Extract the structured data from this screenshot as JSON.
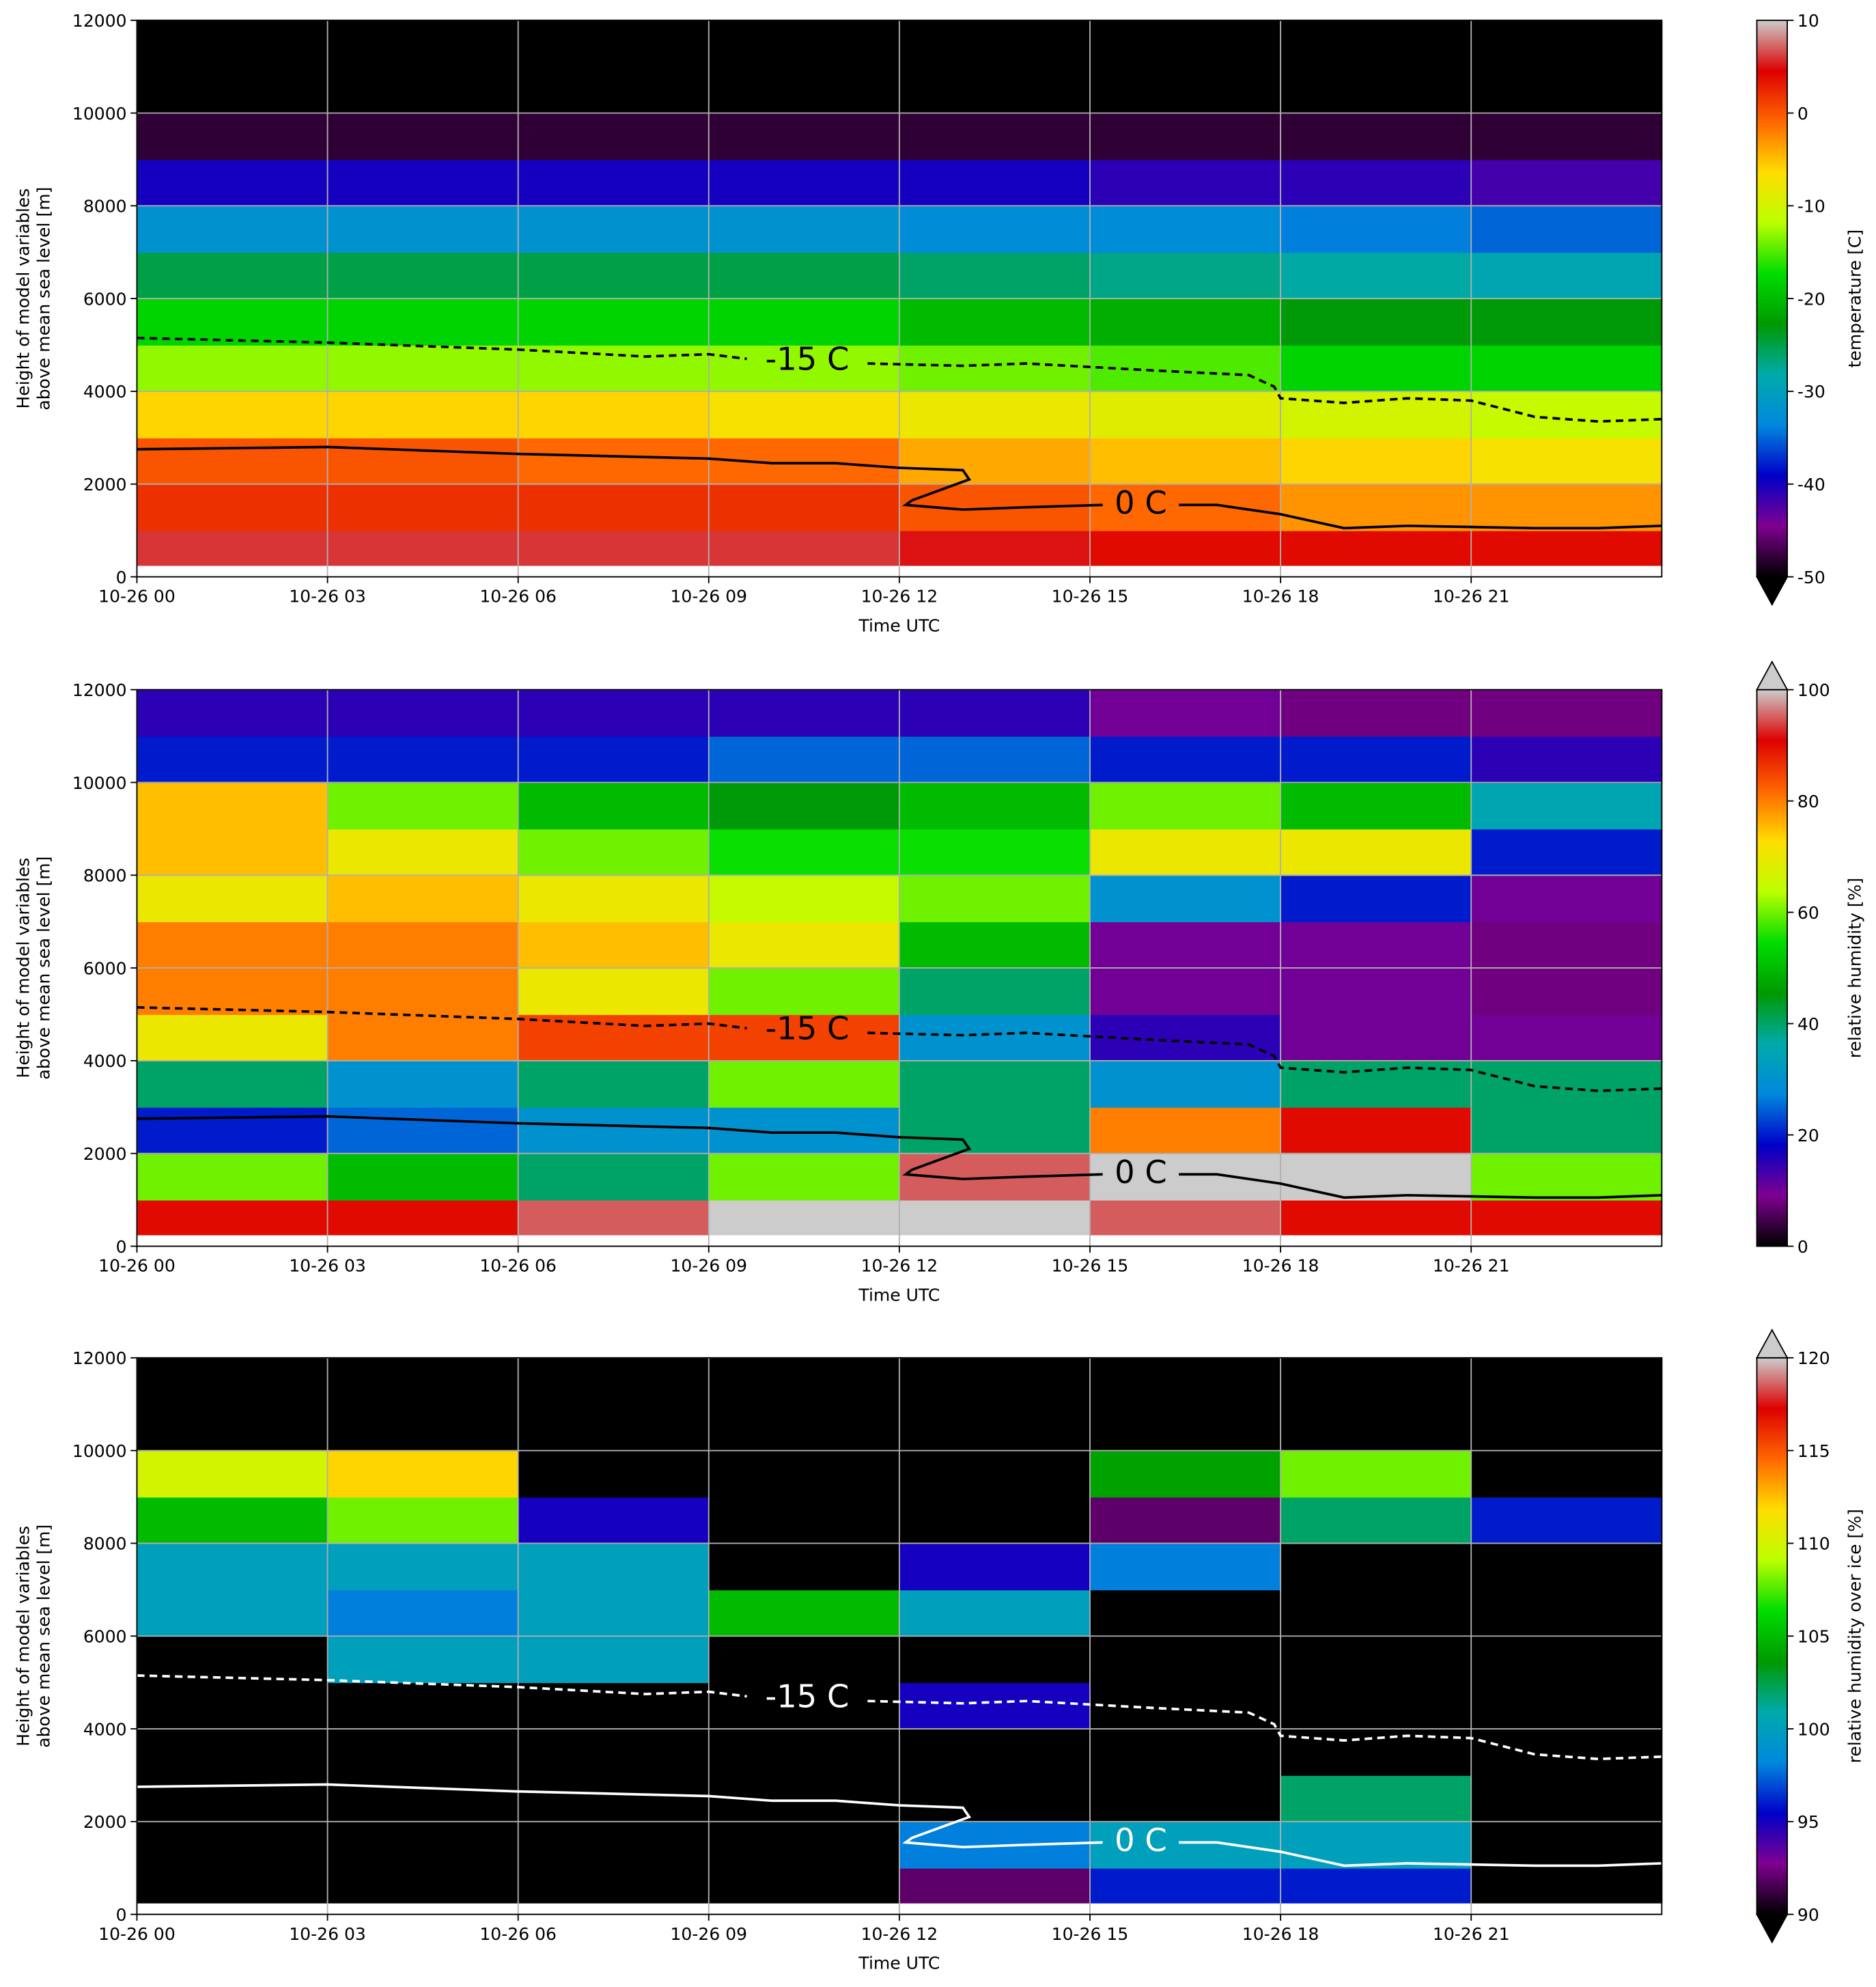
{
  "chart_data": [
    {
      "type": "heatmap",
      "xbins": [
        0,
        3,
        6,
        9,
        12,
        15,
        18,
        21,
        24
      ],
      "ybins": [
        250,
        1000,
        2000,
        3000,
        4000,
        5000,
        6000,
        7000,
        8000,
        9000,
        10000,
        11000,
        12000
      ],
      "values": [
        [
          6,
          6,
          6,
          6,
          5,
          4,
          4,
          4
        ],
        [
          2,
          2,
          2,
          2,
          0,
          -1,
          -3,
          -3
        ],
        [
          0,
          0,
          -1,
          -1,
          -4,
          -5,
          -6,
          -7
        ],
        [
          -6,
          -6,
          -6,
          -7,
          -8,
          -9,
          -10,
          -11
        ],
        [
          -13,
          -13,
          -13,
          -13,
          -14,
          -15,
          -18,
          -18
        ],
        [
          -18,
          -18,
          -18,
          -18,
          -20,
          -21,
          -23,
          -23
        ],
        [
          -25,
          -25,
          -25,
          -25,
          -26,
          -27,
          -28,
          -29
        ],
        [
          -32,
          -32,
          -32,
          -32,
          -33,
          -33,
          -34,
          -35
        ],
        [
          -40,
          -40,
          -40,
          -40,
          -40,
          -41,
          -41,
          -42
        ],
        [
          -48,
          -48,
          -48,
          -48,
          -48,
          -48,
          -48,
          -48
        ],
        [
          -52,
          -52,
          -52,
          -52,
          -52,
          -52,
          -52,
          -52
        ],
        [
          -54,
          -54,
          -54,
          -54,
          -54,
          -54,
          -54,
          -54
        ]
      ],
      "colormap": [
        "#000000",
        "#7f0090",
        "#0000c8",
        "#0088dd",
        "#00aaaa",
        "#009900",
        "#00dd00",
        "#bbff00",
        "#ffdd00",
        "#ff6600",
        "#dd0000",
        "#cccccc"
      ],
      "clim": [
        -50,
        10
      ],
      "under_color": "#000000",
      "colorbar_label": "temperature [C]",
      "colorbar_ticks": [
        -50,
        -40,
        -30,
        -20,
        -10,
        0,
        10
      ],
      "xlim": [
        0,
        24
      ],
      "ylim": [
        0,
        12000
      ],
      "xticks": [
        {
          "value": 0,
          "label": "10-26 00"
        },
        {
          "value": 3,
          "label": "10-26 03"
        },
        {
          "value": 6,
          "label": "10-26 06"
        },
        {
          "value": 9,
          "label": "10-26 09"
        },
        {
          "value": 12,
          "label": "10-26 12"
        },
        {
          "value": 15,
          "label": "10-26 15"
        },
        {
          "value": 18,
          "label": "10-26 18"
        },
        {
          "value": 21,
          "label": "10-26 21"
        }
      ],
      "yticks": [
        0,
        2000,
        4000,
        6000,
        8000,
        10000,
        12000
      ],
      "xlabel": "Time UTC",
      "ylabel": [
        "Height of model variables",
        "above mean sea level [m]"
      ],
      "grid": true,
      "contours": [
        {
          "label": "-15 C",
          "color": "#000000",
          "dashed": true,
          "x": [
            0,
            3,
            6,
            8,
            9,
            9.6,
            null,
            11.5,
            13,
            14,
            16,
            17.5,
            17.9,
            18,
            19,
            20,
            21,
            22,
            23,
            24
          ],
          "y": [
            5150,
            5050,
            4900,
            4750,
            4800,
            4700,
            null,
            4600,
            4550,
            4600,
            4450,
            4350,
            4100,
            3850,
            3750,
            3850,
            3800,
            3450,
            3350,
            3400
          ]
        },
        {
          "label": "0 C",
          "color": "#000000",
          "dashed": false,
          "x": [
            0,
            3,
            6,
            9,
            10,
            11,
            12,
            13,
            13.1,
            12.7,
            12.2,
            12.1,
            13,
            14,
            15.2,
            null,
            16.4,
            17,
            18,
            19,
            20,
            22,
            23,
            24
          ],
          "y": [
            2750,
            2800,
            2650,
            2550,
            2450,
            2450,
            2350,
            2300,
            2100,
            1900,
            1650,
            1550,
            1450,
            1500,
            1550,
            null,
            1550,
            1550,
            1350,
            1050,
            1100,
            1050,
            1050,
            1100
          ]
        }
      ]
    },
    {
      "type": "heatmap",
      "xbins": [
        0,
        3,
        6,
        9,
        12,
        15,
        18,
        21,
        24
      ],
      "ybins": [
        250,
        1000,
        2000,
        3000,
        4000,
        5000,
        6000,
        7000,
        8000,
        9000,
        10000,
        11000,
        12000
      ],
      "values": [
        [
          90,
          90,
          95,
          100,
          100,
          95,
          90,
          90
        ],
        [
          60,
          50,
          40,
          60,
          95,
          100,
          100,
          60
        ],
        [
          20,
          25,
          30,
          30,
          40,
          80,
          90,
          40
        ],
        [
          40,
          30,
          40,
          60,
          40,
          30,
          40,
          40
        ],
        [
          70,
          80,
          85,
          85,
          30,
          15,
          10,
          10
        ],
        [
          80,
          80,
          70,
          60,
          40,
          10,
          10,
          8
        ],
        [
          80,
          80,
          75,
          70,
          50,
          10,
          10,
          8
        ],
        [
          70,
          75,
          70,
          65,
          60,
          30,
          20,
          10
        ],
        [
          75,
          70,
          60,
          55,
          55,
          70,
          70,
          20
        ],
        [
          75,
          60,
          50,
          45,
          50,
          60,
          50,
          35
        ],
        [
          20,
          20,
          20,
          25,
          25,
          20,
          20,
          15
        ],
        [
          15,
          15,
          15,
          15,
          15,
          10,
          8,
          8
        ]
      ],
      "colormap": [
        "#000000",
        "#7f0090",
        "#0000c8",
        "#0088dd",
        "#00aaaa",
        "#009900",
        "#00dd00",
        "#bbff00",
        "#ffdd00",
        "#ff6600",
        "#dd0000",
        "#cccccc"
      ],
      "clim": [
        0,
        100
      ],
      "over_color": "#cccccc",
      "colorbar_label": "relative humidity [%]",
      "colorbar_ticks": [
        0,
        20,
        40,
        60,
        80,
        100
      ],
      "xlim": [
        0,
        24
      ],
      "ylim": [
        0,
        12000
      ],
      "xticks": [
        {
          "value": 0,
          "label": "10-26 00"
        },
        {
          "value": 3,
          "label": "10-26 03"
        },
        {
          "value": 6,
          "label": "10-26 06"
        },
        {
          "value": 9,
          "label": "10-26 09"
        },
        {
          "value": 12,
          "label": "10-26 12"
        },
        {
          "value": 15,
          "label": "10-26 15"
        },
        {
          "value": 18,
          "label": "10-26 18"
        },
        {
          "value": 21,
          "label": "10-26 21"
        }
      ],
      "yticks": [
        0,
        2000,
        4000,
        6000,
        8000,
        10000,
        12000
      ],
      "xlabel": "Time UTC",
      "ylabel": [
        "Height of model variables",
        "above mean sea level [m]"
      ],
      "grid": true,
      "contours": [
        {
          "label": "-15 C",
          "color": "#000000",
          "dashed": true,
          "x": [
            0,
            3,
            6,
            8,
            9,
            9.6,
            null,
            11.5,
            13,
            14,
            16,
            17.5,
            17.9,
            18,
            19,
            20,
            21,
            22,
            23,
            24
          ],
          "y": [
            5150,
            5050,
            4900,
            4750,
            4800,
            4700,
            null,
            4600,
            4550,
            4600,
            4450,
            4350,
            4100,
            3850,
            3750,
            3850,
            3800,
            3450,
            3350,
            3400
          ]
        },
        {
          "label": "0 C",
          "color": "#000000",
          "dashed": false,
          "x": [
            0,
            3,
            6,
            9,
            10,
            11,
            12,
            13,
            13.1,
            12.7,
            12.2,
            12.1,
            13,
            14,
            15.2,
            null,
            16.4,
            17,
            18,
            19,
            20,
            22,
            23,
            24
          ],
          "y": [
            2750,
            2800,
            2650,
            2550,
            2450,
            2450,
            2350,
            2300,
            2100,
            1900,
            1650,
            1550,
            1450,
            1500,
            1550,
            null,
            1550,
            1550,
            1350,
            1050,
            1100,
            1050,
            1050,
            1100
          ]
        }
      ]
    },
    {
      "type": "heatmap",
      "xbins": [
        0,
        3,
        6,
        9,
        12,
        15,
        18,
        21,
        24
      ],
      "ybins": [
        250,
        1000,
        2000,
        3000,
        4000,
        5000,
        6000,
        7000,
        8000,
        9000,
        10000,
        11000,
        12000
      ],
      "values": [
        [
          85,
          85,
          85,
          88,
          92,
          96,
          96,
          85
        ],
        [
          85,
          85,
          85,
          85,
          98,
          100,
          100,
          85
        ],
        [
          85,
          85,
          85,
          85,
          85,
          88,
          102,
          85
        ],
        [
          85,
          85,
          85,
          85,
          85,
          85,
          85,
          85
        ],
        [
          85,
          88,
          85,
          85,
          95,
          85,
          85,
          85
        ],
        [
          85,
          100,
          100,
          85,
          85,
          85,
          85,
          85
        ],
        [
          100,
          98,
          100,
          105,
          100,
          85,
          85,
          85
        ],
        [
          100,
          100,
          100,
          85,
          95,
          98,
          85,
          85
        ],
        [
          105,
          108,
          95,
          85,
          85,
          92,
          102,
          96
        ],
        [
          110,
          112,
          90,
          85,
          85,
          104,
          108,
          85
        ],
        [
          85,
          85,
          85,
          85,
          85,
          85,
          85,
          85
        ],
        [
          85,
          85,
          85,
          85,
          85,
          85,
          85,
          85
        ]
      ],
      "colormap": [
        "#000000",
        "#7f0090",
        "#0000c8",
        "#0088dd",
        "#00aaaa",
        "#009900",
        "#00dd00",
        "#bbff00",
        "#ffdd00",
        "#ff6600",
        "#dd0000",
        "#cccccc"
      ],
      "clim": [
        90,
        120
      ],
      "under_color": "#000000",
      "over_color": "#cccccc",
      "colorbar_label": "relative humidity over ice [%]",
      "colorbar_ticks": [
        90,
        95,
        100,
        105,
        110,
        115,
        120
      ],
      "xlim": [
        0,
        24
      ],
      "ylim": [
        0,
        12000
      ],
      "xticks": [
        {
          "value": 0,
          "label": "10-26 00"
        },
        {
          "value": 3,
          "label": "10-26 03"
        },
        {
          "value": 6,
          "label": "10-26 06"
        },
        {
          "value": 9,
          "label": "10-26 09"
        },
        {
          "value": 12,
          "label": "10-26 12"
        },
        {
          "value": 15,
          "label": "10-26 15"
        },
        {
          "value": 18,
          "label": "10-26 18"
        },
        {
          "value": 21,
          "label": "10-26 21"
        }
      ],
      "yticks": [
        0,
        2000,
        4000,
        6000,
        8000,
        10000,
        12000
      ],
      "xlabel": "Time UTC",
      "ylabel": [
        "Height of model variables",
        "above mean sea level [m]"
      ],
      "grid": true,
      "contours": [
        {
          "label": "-15 C",
          "color": "#ffffff",
          "dashed": true,
          "x": [
            0,
            3,
            6,
            8,
            9,
            9.6,
            null,
            11.5,
            13,
            14,
            16,
            17.5,
            17.9,
            18,
            19,
            20,
            21,
            22,
            23,
            24
          ],
          "y": [
            5150,
            5050,
            4900,
            4750,
            4800,
            4700,
            null,
            4600,
            4550,
            4600,
            4450,
            4350,
            4100,
            3850,
            3750,
            3850,
            3800,
            3450,
            3350,
            3400
          ]
        },
        {
          "label": "0 C",
          "color": "#ffffff",
          "dashed": false,
          "x": [
            0,
            3,
            6,
            9,
            10,
            11,
            12,
            13,
            13.1,
            12.7,
            12.2,
            12.1,
            13,
            14,
            15.2,
            null,
            16.4,
            17,
            18,
            19,
            20,
            22,
            23,
            24
          ],
          "y": [
            2750,
            2800,
            2650,
            2550,
            2450,
            2450,
            2350,
            2300,
            2100,
            1900,
            1650,
            1550,
            1450,
            1500,
            1550,
            null,
            1550,
            1550,
            1350,
            1050,
            1100,
            1050,
            1050,
            1100
          ]
        }
      ]
    }
  ]
}
